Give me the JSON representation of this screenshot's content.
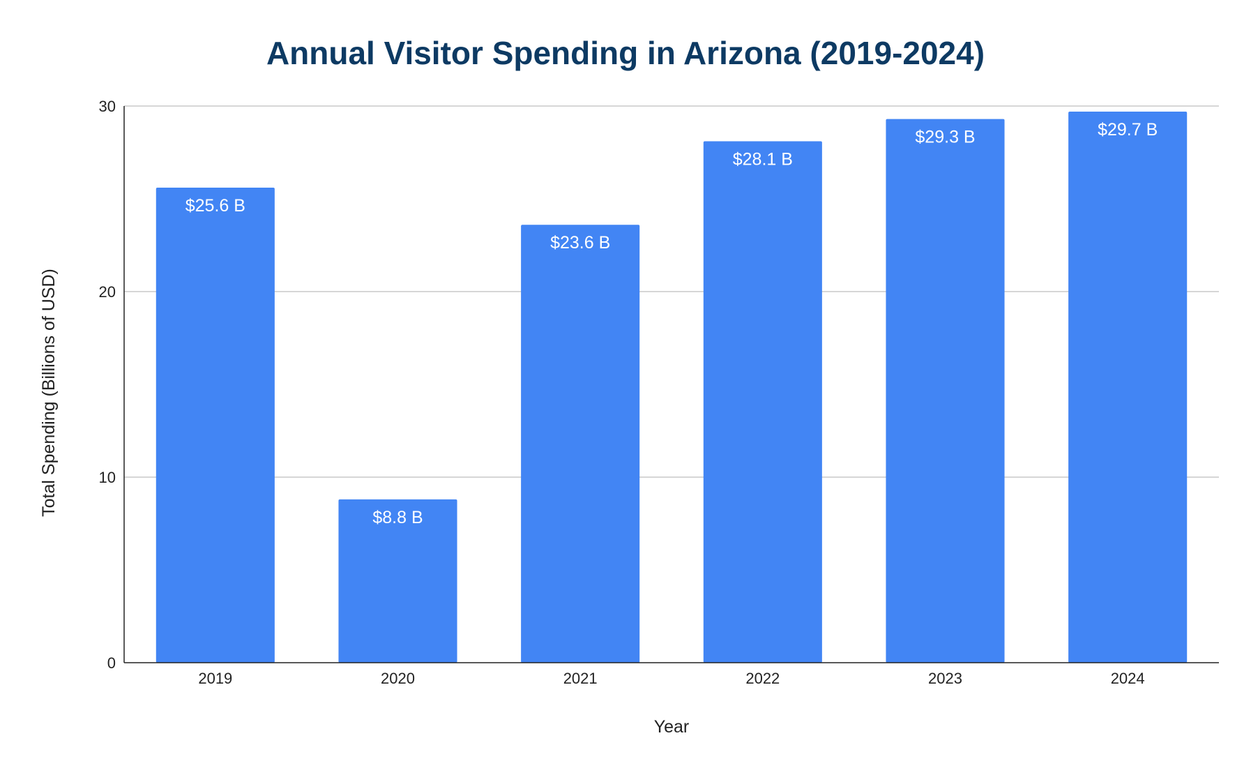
{
  "chart_data": {
    "type": "bar",
    "title": "Annual Visitor Spending in Arizona (2019-2024)",
    "xlabel": "Year",
    "ylabel": "Total Spending (Billions of USD)",
    "categories": [
      "2019",
      "2020",
      "2021",
      "2022",
      "2023",
      "2024"
    ],
    "values": [
      25.6,
      8.8,
      23.6,
      28.1,
      29.3,
      29.7
    ],
    "data_labels": [
      "$25.6 B",
      "$8.8 B",
      "$23.6 B",
      "$28.1 B",
      "$29.3 B",
      "$29.7 B"
    ],
    "ylim": [
      0,
      30
    ],
    "yticks": [
      "0",
      "10",
      "20",
      "30"
    ],
    "ytick_values": [
      0,
      10,
      20,
      30
    ],
    "grid": true,
    "legend": "none",
    "bar_color": "#4285f4",
    "title_color": "#0d3a63"
  }
}
